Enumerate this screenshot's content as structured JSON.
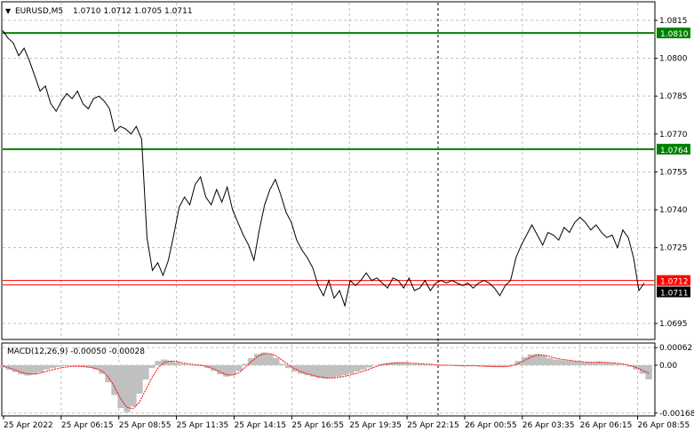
{
  "header": {
    "symbol_label": "EURUSD,M5",
    "ohlc": "1.0710 1.0712 1.0705 1.0711"
  },
  "indicator": {
    "label": "MACD(12,26,9) -0.00050 -0.00028"
  },
  "price_axis": {
    "ticks": [
      "1.0815",
      "1.0800",
      "1.0785",
      "1.0770",
      "1.0755",
      "1.0740",
      "1.0725",
      "1.0695"
    ],
    "tick_values": [
      1.0815,
      1.08,
      1.0785,
      1.077,
      1.0755,
      1.074,
      1.0725,
      1.0695
    ]
  },
  "macd_axis": {
    "ticks": [
      "0.00062",
      "0.00",
      "-0.00168"
    ],
    "tick_values": [
      0.00062,
      0.0,
      -0.00168
    ]
  },
  "time_axis": {
    "ticks": [
      "25 Apr 2022",
      "25 Apr 06:15",
      "25 Apr 08:55",
      "25 Apr 11:35",
      "25 Apr 14:15",
      "25 Apr 16:55",
      "25 Apr 19:35",
      "25 Apr 22:15",
      "26 Apr 00:55",
      "26 Apr 03:35",
      "26 Apr 06:15",
      "26 Apr 08:55"
    ]
  },
  "levels": [
    {
      "value": 1.081,
      "label": "1.0810",
      "color": "#008000"
    },
    {
      "value": 1.0764,
      "label": "1.0764",
      "color": "#008000"
    },
    {
      "value": 1.0712,
      "label": "1.0712",
      "color": "#ff0000"
    }
  ],
  "current_price": {
    "value": 1.0711,
    "label": "1.0711"
  },
  "colors": {
    "price_line": "#000000",
    "grid": "#c0c0c0",
    "histogram": "#c0c0c0",
    "signal": "#ff0000",
    "level_green": "#008000",
    "level_red": "#ff0000"
  },
  "chart_data": {
    "type": "line",
    "series": [
      {
        "values": [
          1.0811,
          1.0808,
          1.0806,
          1.0801,
          1.0804,
          1.0799,
          1.0793,
          1.0787,
          1.0789,
          1.0782,
          1.0779,
          1.0783,
          1.0786,
          1.0784,
          1.0787,
          1.0782,
          1.078,
          1.0784,
          1.0785,
          1.0783,
          1.078,
          1.0771,
          1.0773,
          1.0772,
          1.077,
          1.0773,
          1.0768,
          1.0729,
          1.0716,
          1.0719,
          1.0714,
          1.072,
          1.073,
          1.0741,
          1.0745,
          1.0742,
          1.075,
          1.0753,
          1.0745,
          1.0742,
          1.0748,
          1.0743,
          1.0749,
          1.074,
          1.0735,
          1.073,
          1.0726,
          1.072,
          1.0732,
          1.0742,
          1.0748,
          1.0752,
          1.0746,
          1.0739,
          1.0735,
          1.0728,
          1.0724,
          1.0721,
          1.0717,
          1.071,
          1.0706,
          1.0712,
          1.0705,
          1.0708,
          1.0702,
          1.0712,
          1.071,
          1.0712,
          1.0715,
          1.0712,
          1.0713,
          1.0711,
          1.0709,
          1.0713,
          1.0712,
          1.0709,
          1.0713,
          1.0708,
          1.0709,
          1.0712,
          1.0708,
          1.0711,
          1.0712,
          1.0711,
          1.0712,
          1.0711,
          1.071,
          1.0711,
          1.0709,
          1.0711,
          1.0712,
          1.0711,
          1.0709,
          1.0706,
          1.071,
          1.0712,
          1.0721,
          1.0726,
          1.073,
          1.0734,
          1.073,
          1.0726,
          1.0731,
          1.073,
          1.0728,
          1.0733,
          1.0731,
          1.0735,
          1.0737,
          1.0735,
          1.0732,
          1.0734,
          1.0731,
          1.0729,
          1.073,
          1.0725,
          1.0732,
          1.0729,
          1.0721,
          1.0708,
          1.0711
        ]
      },
      {
        "values": [
          -8e-05,
          -0.00016,
          -0.00024,
          -0.00032,
          -0.00036,
          -0.00033,
          -0.00025,
          -0.00015,
          -0.0001,
          -6e-05,
          -3e-05,
          -2e-05,
          -3e-05,
          -5e-05,
          -8e-05,
          -0.00015,
          -0.0003,
          -0.0006,
          -0.00105,
          -0.0015,
          -0.00165,
          -0.00145,
          -0.001,
          -0.0005,
          -0.0001,
          0.00015,
          0.0002,
          0.00015,
          0.0001,
          5e-05,
          2e-05,
          0.0,
          -3e-05,
          -0.0001,
          -0.0002,
          -0.00032,
          -0.0004,
          -0.00035,
          -0.0002,
          5e-05,
          0.00025,
          0.0004,
          0.00045,
          0.0004,
          0.00025,
          5e-05,
          -0.0001,
          -0.00022,
          -0.0003,
          -0.00035,
          -0.0004,
          -0.00045,
          -0.00047,
          -0.00045,
          -0.0004,
          -0.00035,
          -0.0003,
          -0.00022,
          -0.00015,
          -8e-05,
          0.0,
          5e-05,
          8e-05,
          0.0001,
          0.0001,
          8e-05,
          5e-05,
          5e-05,
          3e-05,
          2e-05,
          0.0,
          -2e-05,
          0.0,
          -2e-05,
          -3e-05,
          -2e-05,
          -2e-05,
          -3e-05,
          -5e-05,
          -6e-05,
          -5e-05,
          -5e-05,
          2e-05,
          0.00015,
          0.00028,
          0.00038,
          0.0004,
          0.00035,
          0.00025,
          0.0002,
          0.00018,
          0.00016,
          0.00014,
          0.00012,
          0.0001,
          0.0001,
          0.00012,
          0.0001,
          8e-05,
          5e-05,
          2e-05,
          -5e-05,
          -0.00015,
          -0.0003,
          -0.0005
        ]
      },
      {
        "values": [
          -3e-05,
          -9e-05,
          -0.00017,
          -0.00025,
          -0.0003,
          -0.00031,
          -0.00028,
          -0.00022,
          -0.00016,
          -0.00011,
          -7e-05,
          -4e-05,
          -4e-05,
          -5e-05,
          -7e-05,
          -0.00011,
          -0.0002,
          -0.0004,
          -0.00075,
          -0.00118,
          -0.00148,
          -0.00153,
          -0.0013,
          -0.00088,
          -0.00045,
          -0.0001,
          0.0001,
          0.00015,
          0.00013,
          8e-05,
          5e-05,
          2e-05,
          0.0,
          -5e-05,
          -0.00013,
          -0.00023,
          -0.00033,
          -0.00035,
          -0.00027,
          -8e-05,
          0.00012,
          0.0003,
          0.0004,
          0.00041,
          0.00033,
          0.00018,
          2e-05,
          -0.00012,
          -0.00022,
          -0.0003,
          -0.00036,
          -0.00041,
          -0.00044,
          -0.00045,
          -0.00043,
          -0.00039,
          -0.00034,
          -0.00028,
          -0.00021,
          -0.00014,
          -6e-05,
          1e-05,
          5e-05,
          8e-05,
          9e-05,
          9e-05,
          7e-05,
          6e-05,
          4e-05,
          3e-05,
          1e-05,
          0.0,
          0.0,
          -1e-05,
          -2e-05,
          -2e-05,
          -2e-05,
          -3e-05,
          -4e-05,
          -5e-05,
          -5e-05,
          -5e-05,
          -2e-05,
          6e-05,
          0.00017,
          0.00028,
          0.00035,
          0.00036,
          0.00031,
          0.00025,
          0.00021,
          0.00018,
          0.00015,
          0.00013,
          0.00011,
          0.0001,
          0.00011,
          0.0001,
          9e-05,
          7e-05,
          4e-05,
          -1e-05,
          -8e-05,
          -0.00018,
          -0.00028
        ]
      }
    ],
    "price_ylim": [
      1.0689,
      1.0822
    ],
    "macd_ylim": [
      -0.00175,
      0.00075
    ],
    "grid": true
  }
}
